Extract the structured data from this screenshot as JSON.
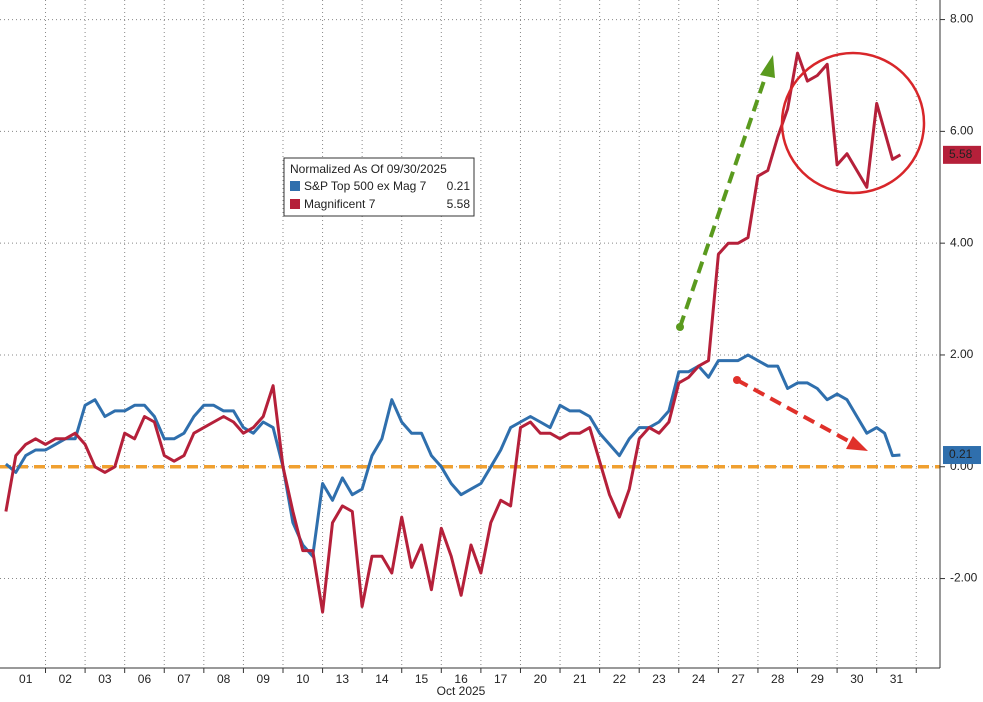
{
  "chart_data": {
    "type": "line",
    "legend_title": "Normalized As Of 09/30/2025",
    "x_label": "Oct 2025",
    "x": [
      0,
      0.25,
      0.5,
      0.75,
      1,
      1.25,
      1.5,
      1.75,
      2,
      2.25,
      2.5,
      2.75,
      3,
      3.25,
      3.5,
      3.75,
      4,
      4.25,
      4.5,
      4.75,
      5,
      5.25,
      5.5,
      5.75,
      6,
      6.25,
      6.5,
      6.75,
      7,
      7.25,
      7.5,
      7.75,
      8,
      8.25,
      8.5,
      8.75,
      9,
      9.25,
      9.5,
      9.75,
      10,
      10.25,
      10.5,
      10.75,
      11,
      11.25,
      11.5,
      11.75,
      12,
      12.25,
      12.5,
      12.75,
      13,
      13.25,
      13.5,
      13.75,
      14,
      14.25,
      14.5,
      14.75,
      15,
      15.25,
      15.5,
      15.75,
      16,
      16.25,
      16.5,
      16.75,
      17,
      17.25,
      17.5,
      17.75,
      18,
      18.25,
      18.5,
      18.75,
      19,
      19.25,
      19.5,
      19.75,
      20,
      20.25,
      20.5,
      20.75,
      21,
      21.25,
      21.5,
      21.75,
      22,
      22.2,
      22.4,
      22.6
    ],
    "series": [
      {
        "name": "S&P Top 500 ex Mag 7",
        "color": "#2f6fad",
        "legend_value": "0.21",
        "values": [
          0.05,
          -0.1,
          0.2,
          0.3,
          0.3,
          0.4,
          0.5,
          0.5,
          1.1,
          1.2,
          0.9,
          1.0,
          1.0,
          1.1,
          1.1,
          0.9,
          0.5,
          0.5,
          0.6,
          0.9,
          1.1,
          1.1,
          1.0,
          1.0,
          0.7,
          0.6,
          0.8,
          0.7,
          0.0,
          -1.0,
          -1.4,
          -1.6,
          -0.3,
          -0.6,
          -0.2,
          -0.5,
          -0.4,
          0.2,
          0.5,
          1.2,
          0.8,
          0.6,
          0.6,
          0.2,
          0.0,
          -0.3,
          -0.5,
          -0.4,
          -0.3,
          0.0,
          0.3,
          0.7,
          0.8,
          0.9,
          0.8,
          0.7,
          1.1,
          1.0,
          1.0,
          0.9,
          0.6,
          0.4,
          0.2,
          0.5,
          0.7,
          0.7,
          0.8,
          1.0,
          1.7,
          1.7,
          1.8,
          1.6,
          1.9,
          1.9,
          1.9,
          2.0,
          1.9,
          1.8,
          1.8,
          1.4,
          1.5,
          1.5,
          1.4,
          1.2,
          1.3,
          1.2,
          0.9,
          0.6,
          0.7,
          0.6,
          0.2,
          0.21
        ]
      },
      {
        "name": "Magnificent 7",
        "color": "#b5203a",
        "legend_value": "5.58",
        "values": [
          -0.8,
          0.2,
          0.4,
          0.5,
          0.4,
          0.5,
          0.5,
          0.6,
          0.4,
          0.0,
          -0.1,
          0.0,
          0.6,
          0.5,
          0.9,
          0.8,
          0.2,
          0.1,
          0.2,
          0.6,
          0.7,
          0.8,
          0.9,
          0.8,
          0.6,
          0.7,
          0.9,
          1.45,
          0.0,
          -0.8,
          -1.5,
          -1.5,
          -2.6,
          -1.0,
          -0.7,
          -0.8,
          -2.5,
          -1.6,
          -1.6,
          -1.9,
          -0.9,
          -1.8,
          -1.4,
          -2.2,
          -1.1,
          -1.6,
          -2.3,
          -1.4,
          -1.9,
          -1.0,
          -0.6,
          -0.7,
          0.7,
          0.8,
          0.6,
          0.6,
          0.5,
          0.6,
          0.6,
          0.7,
          0.1,
          -0.5,
          -0.9,
          -0.4,
          0.5,
          0.7,
          0.6,
          0.8,
          1.5,
          1.6,
          1.8,
          1.9,
          3.8,
          4.0,
          4.0,
          4.1,
          5.2,
          5.3,
          5.9,
          6.4,
          7.4,
          6.9,
          7.0,
          7.2,
          5.4,
          5.6,
          5.3,
          5.0,
          6.5,
          6.0,
          5.5,
          5.58
        ]
      }
    ],
    "xlim": [
      -0.15,
      23.6
    ],
    "xticks": [
      {
        "value": 0.5,
        "label": "01"
      },
      {
        "value": 1.5,
        "label": "02"
      },
      {
        "value": 2.5,
        "label": "03"
      },
      {
        "value": 3.5,
        "label": "06"
      },
      {
        "value": 4.5,
        "label": "07"
      },
      {
        "value": 5.5,
        "label": "08"
      },
      {
        "value": 6.5,
        "label": "09"
      },
      {
        "value": 7.5,
        "label": "10"
      },
      {
        "value": 8.5,
        "label": "13"
      },
      {
        "value": 9.5,
        "label": "14"
      },
      {
        "value": 10.5,
        "label": "15"
      },
      {
        "value": 11.5,
        "label": "16"
      },
      {
        "value": 12.5,
        "label": "17"
      },
      {
        "value": 13.5,
        "label": "20"
      },
      {
        "value": 14.5,
        "label": "21"
      },
      {
        "value": 15.5,
        "label": "22"
      },
      {
        "value": 16.5,
        "label": "23"
      },
      {
        "value": 17.5,
        "label": "24"
      },
      {
        "value": 18.5,
        "label": "27"
      },
      {
        "value": 19.5,
        "label": "28"
      },
      {
        "value": 20.5,
        "label": "29"
      },
      {
        "value": 21.5,
        "label": "30"
      },
      {
        "value": 22.5,
        "label": "31"
      }
    ],
    "ylim": [
      -3.6,
      8.35
    ],
    "yticks": [
      {
        "value": -2,
        "label": "-2.00"
      },
      {
        "value": 0,
        "label": "0.00"
      },
      {
        "value": 2,
        "label": "2.00"
      },
      {
        "value": 4,
        "label": "4.00"
      },
      {
        "value": 6,
        "label": "6.00"
      },
      {
        "value": 8,
        "label": "8.00"
      }
    ],
    "reference_line": {
      "value": 0,
      "color": "#f0a030"
    },
    "grid": true
  }
}
